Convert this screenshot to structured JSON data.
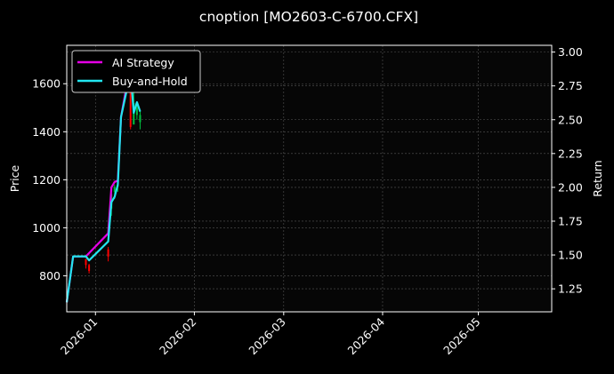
{
  "chart_data": {
    "type": "line",
    "title": "cnoption [MO2603-C-6700.CFX]",
    "xlabel": "",
    "ylabel": "Price",
    "y2label": "Return",
    "x_ticks": [
      "2026-01",
      "2026-02",
      "2026-03",
      "2026-04",
      "2026-05"
    ],
    "y_ticks": [
      800,
      1000,
      1200,
      1400,
      1600
    ],
    "y2_ticks": [
      "1.25",
      "1.50",
      "1.75",
      "2.00",
      "2.25",
      "2.50",
      "2.75",
      "3.00"
    ],
    "xlim": [
      "2025-12-23",
      "2026-05-24"
    ],
    "ylim": [
      650,
      1760
    ],
    "y2lim": [
      1.08,
      3.05
    ],
    "grid": true,
    "legend_position": "upper-left",
    "series": [
      {
        "name": "AI Strategy",
        "color": "#e600e6",
        "axis": "return",
        "points": [
          [
            "2025-12-23",
            1.15
          ],
          [
            "2025-12-25",
            1.49
          ],
          [
            "2025-12-29",
            1.49
          ],
          [
            "2026-01-05",
            1.66
          ],
          [
            "2026-01-06",
            2.0
          ],
          [
            "2026-01-07",
            2.04
          ],
          [
            "2026-01-08",
            2.05
          ],
          [
            "2026-01-09",
            2.52
          ],
          [
            "2026-01-12",
            2.91
          ],
          [
            "2026-01-13",
            2.95
          ],
          [
            "2026-01-14",
            2.97
          ]
        ]
      },
      {
        "name": "Buy-and-Hold",
        "color": "#22e5f0",
        "axis": "return",
        "points": [
          [
            "2025-12-23",
            1.15
          ],
          [
            "2025-12-25",
            1.49
          ],
          [
            "2025-12-29",
            1.49
          ],
          [
            "2025-12-30",
            1.46
          ],
          [
            "2026-01-05",
            1.6
          ],
          [
            "2026-01-06",
            1.89
          ],
          [
            "2026-01-07",
            1.93
          ],
          [
            "2026-01-08",
            2.02
          ],
          [
            "2026-01-09",
            2.52
          ],
          [
            "2026-01-12",
            2.85
          ],
          [
            "2026-01-13",
            2.55
          ],
          [
            "2026-01-14",
            2.63
          ],
          [
            "2026-01-15",
            2.56
          ]
        ]
      }
    ],
    "candles": [
      {
        "date": "2025-12-29",
        "open": 870,
        "close": 845,
        "high": 870,
        "low": 830
      },
      {
        "date": "2025-12-30",
        "open": 845,
        "close": 820,
        "high": 850,
        "low": 810
      },
      {
        "date": "2026-01-05",
        "open": 910,
        "close": 880,
        "high": 920,
        "low": 860
      },
      {
        "date": "2026-01-06",
        "open": 1080,
        "close": 1140,
        "high": 1150,
        "low": 1050
      },
      {
        "date": "2026-01-07",
        "open": 1150,
        "close": 1170,
        "high": 1180,
        "low": 1120
      },
      {
        "date": "2026-01-08",
        "open": 1170,
        "close": 1180,
        "high": 1200,
        "low": 1150
      },
      {
        "date": "2026-01-12",
        "open": 1640,
        "close": 1420,
        "high": 1660,
        "low": 1410
      },
      {
        "date": "2026-01-13",
        "open": 1430,
        "close": 1520,
        "high": 1660,
        "low": 1440
      },
      {
        "date": "2026-01-14",
        "open": 1470,
        "close": 1500,
        "high": 1520,
        "low": 1450
      },
      {
        "date": "2026-01-15",
        "open": 1440,
        "close": 1470,
        "high": 1490,
        "low": 1410
      }
    ],
    "colors": {
      "up": "#00c040",
      "down": "#ff0000",
      "grid": "#555555",
      "axes": "#ffffff"
    }
  }
}
